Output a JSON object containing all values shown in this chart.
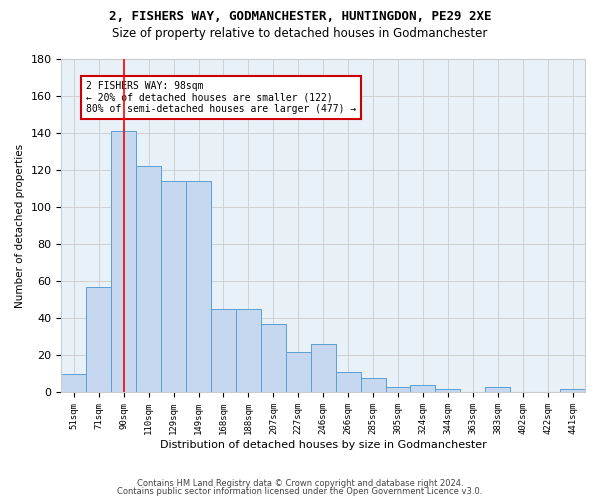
{
  "title1": "2, FISHERS WAY, GODMANCHESTER, HUNTINGDON, PE29 2XE",
  "title2": "Size of property relative to detached houses in Godmanchester",
  "xlabel": "Distribution of detached houses by size in Godmanchester",
  "ylabel": "Number of detached properties",
  "categories": [
    "51sqm",
    "71sqm",
    "90sqm",
    "110sqm",
    "129sqm",
    "149sqm",
    "168sqm",
    "188sqm",
    "207sqm",
    "227sqm",
    "246sqm",
    "266sqm",
    "285sqm",
    "305sqm",
    "324sqm",
    "344sqm",
    "363sqm",
    "383sqm",
    "402sqm",
    "422sqm",
    "441sqm"
  ],
  "values": [
    10,
    57,
    141,
    122,
    114,
    114,
    45,
    45,
    37,
    22,
    26,
    11,
    8,
    3,
    4,
    2,
    0,
    3,
    0,
    0,
    2
  ],
  "bar_color": "#c5d8f0",
  "bar_edge_color": "#5a9fd4",
  "red_line_x": 2,
  "annotation_text": "2 FISHERS WAY: 98sqm\n← 20% of detached houses are smaller (122)\n80% of semi-detached houses are larger (477) →",
  "annotation_box_color": "#ffffff",
  "annotation_box_edge": "#cc0000",
  "footer1": "Contains HM Land Registry data © Crown copyright and database right 2024.",
  "footer2": "Contains public sector information licensed under the Open Government Licence v3.0.",
  "ylim": [
    0,
    180
  ],
  "yticks": [
    0,
    20,
    40,
    60,
    80,
    100,
    120,
    140,
    160,
    180
  ],
  "grid_color": "#cccccc",
  "background_color": "#e8f0f8"
}
